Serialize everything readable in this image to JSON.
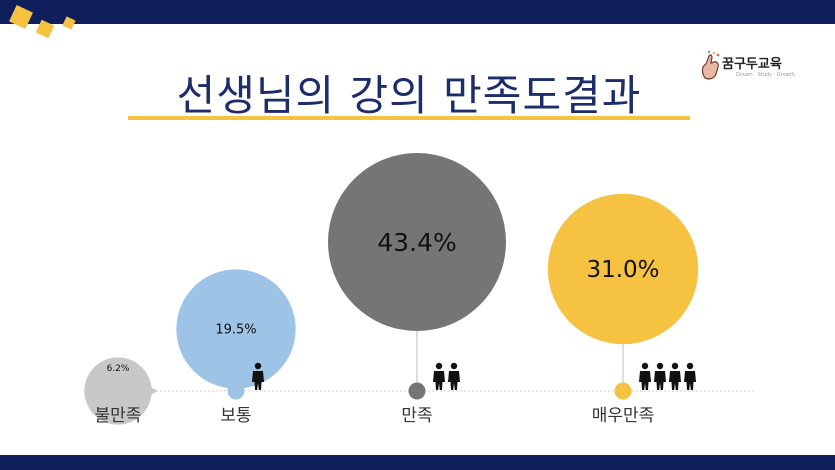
{
  "title": "선생님의 강의 만족도결과",
  "logo": {
    "name": "꿈구두교육",
    "tagline": "Dream · Study · Growth"
  },
  "colors": {
    "navy": "#0e1f5b",
    "yellow": "#f5c242",
    "blue": "#9dc3e6",
    "gray": "#757575",
    "light_gray": "#c8c8c8"
  },
  "chart_data": {
    "type": "bubble",
    "categories": [
      "불만족",
      "보통",
      "만족",
      "매우만족"
    ],
    "values": [
      6.2,
      19.5,
      43.4,
      31.0
    ],
    "labels": [
      "6.2%",
      "19.5%",
      "43.4%",
      "31.0%"
    ],
    "colors": [
      "#c8c8c8",
      "#9dc3e6",
      "#757575",
      "#f5c242"
    ],
    "people_icons": [
      0,
      1,
      2,
      4
    ],
    "unit": "%"
  }
}
